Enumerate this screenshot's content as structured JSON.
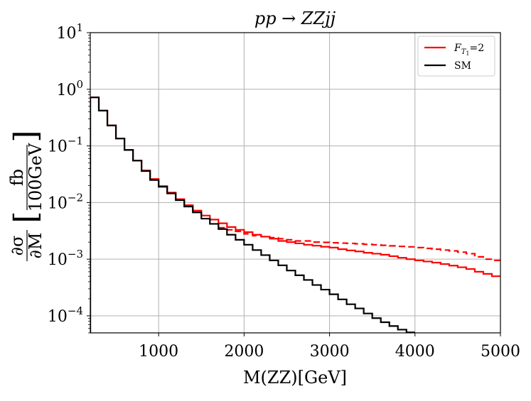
{
  "chart_data": {
    "type": "line",
    "title": "pp → ZZjj",
    "xlabel": "M(ZZ)[GeV]",
    "ylabel": "∂σ/∂M [fb/100GeV]",
    "ylabel_parts": {
      "num": "∂σ",
      "den": "∂M",
      "unit_num": "fb",
      "unit_den": "100GeV"
    },
    "xlim": [
      200,
      5000
    ],
    "ylim": [
      5e-05,
      10
    ],
    "yscale": "log",
    "grid": true,
    "legend_position": "top-right",
    "x_ticks": [
      {
        "value": 1000,
        "label": "1000"
      },
      {
        "value": 2000,
        "label": "2000"
      },
      {
        "value": 3000,
        "label": "3000"
      },
      {
        "value": 4000,
        "label": "4000"
      },
      {
        "value": 5000,
        "label": "5000"
      }
    ],
    "y_ticks": [
      {
        "value": 0.0001,
        "base": "10",
        "exp": "−4"
      },
      {
        "value": 0.001,
        "base": "10",
        "exp": "−3"
      },
      {
        "value": 0.01,
        "base": "10",
        "exp": "−2"
      },
      {
        "value": 0.1,
        "base": "10",
        "exp": "−1"
      },
      {
        "value": 1,
        "base": "10",
        "exp": "0"
      },
      {
        "value": 10,
        "base": "10",
        "exp": "1"
      }
    ],
    "bin_width": 100,
    "series": [
      {
        "name": "SM",
        "color": "#000000",
        "style": "solid",
        "start": 200,
        "values": [
          0.72,
          0.42,
          0.23,
          0.135,
          0.085,
          0.055,
          0.036,
          0.025,
          0.019,
          0.0145,
          0.011,
          0.0085,
          0.0067,
          0.0052,
          0.0042,
          0.0034,
          0.0027,
          0.0022,
          0.0018,
          0.00145,
          0.00118,
          0.00095,
          0.00078,
          0.00063,
          0.00052,
          0.00043,
          0.00035,
          0.00029,
          0.00024,
          0.000195,
          0.00016,
          0.000135,
          0.00011,
          9.1e-05,
          7.7e-05,
          6.6e-05,
          5.7e-05,
          5.1e-05
        ]
      },
      {
        "name": "F_T1=2",
        "name_parts": {
          "F": "F",
          "sub": "T",
          "subsub": "1",
          "rest": "=2"
        },
        "color": "#ff0000",
        "style": "solid",
        "start": 200,
        "values": [
          0.72,
          0.42,
          0.23,
          0.135,
          0.085,
          0.055,
          0.037,
          0.026,
          0.0195,
          0.015,
          0.0115,
          0.009,
          0.0072,
          0.0059,
          0.005,
          0.0043,
          0.0037,
          0.0033,
          0.003,
          0.0027,
          0.0025,
          0.0023,
          0.0021,
          0.002,
          0.0019,
          0.0018,
          0.00173,
          0.00166,
          0.0016,
          0.0015,
          0.00143,
          0.00137,
          0.0013,
          0.00125,
          0.0012,
          0.00113,
          0.00106,
          0.001,
          0.00095,
          0.00091,
          0.00087,
          0.00082,
          0.00077,
          0.00072,
          0.00067,
          0.0006,
          0.00055,
          0.0005
        ]
      },
      {
        "name": "F_T1=2 (dashed)",
        "color": "#ff0000",
        "style": "dashed",
        "start": 1700,
        "values": [
          0.0036,
          0.0033,
          0.0031,
          0.0028,
          0.0026,
          0.0025,
          0.0024,
          0.0023,
          0.0022,
          0.0021,
          0.0021,
          0.002,
          0.00198,
          0.00195,
          0.00192,
          0.0019,
          0.00187,
          0.00183,
          0.0018,
          0.00176,
          0.00172,
          0.00168,
          0.00165,
          0.0016,
          0.00155,
          0.0015,
          0.00145,
          0.0014,
          0.00133,
          0.00125,
          0.0011,
          0.001,
          0.00095,
          0.00093
        ]
      }
    ],
    "legend": [
      {
        "series": 1
      },
      {
        "series": 0
      }
    ]
  }
}
